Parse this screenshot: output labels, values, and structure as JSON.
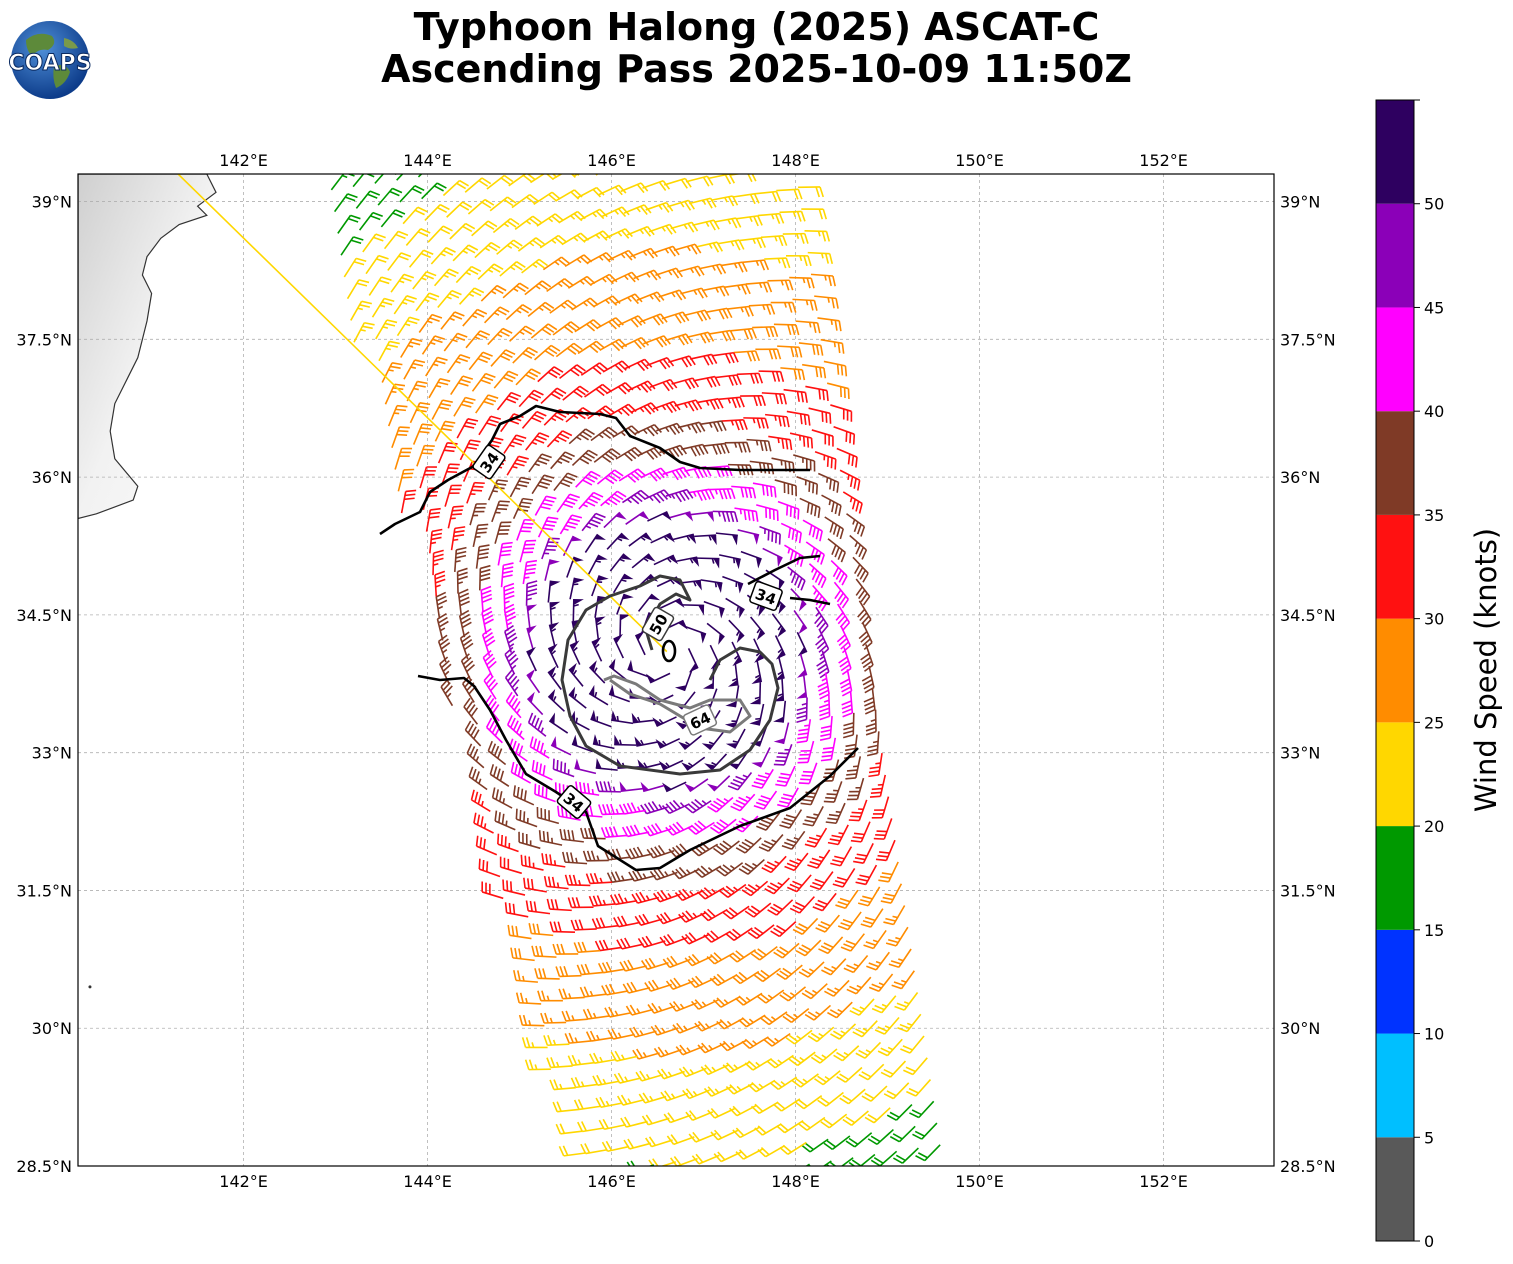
{
  "header": {
    "title_line1": "Typhoon Halong (2025) ASCAT-C",
    "title_line2": "Ascending Pass 2025-10-09 11:50Z",
    "logo_text": "COAPS"
  },
  "map": {
    "lon_range": [
      140.2,
      153.2
    ],
    "lat_range": [
      28.5,
      39.3
    ],
    "lon_ticks": [
      "142°E",
      "144°E",
      "146°E",
      "148°E",
      "150°E",
      "152°E"
    ],
    "lat_ticks": [
      "39°N",
      "37.5°N",
      "36°N",
      "34.5°N",
      "33°N",
      "31.5°N",
      "30°N",
      "28.5°N"
    ],
    "grid": true,
    "storm_center": {
      "lon": 146.6,
      "lat": 34.1
    },
    "contour_labels": [
      {
        "text": "34",
        "color": "#000000"
      },
      {
        "text": "34",
        "color": "#000000"
      },
      {
        "text": "34",
        "color": "#000000"
      },
      {
        "text": "50",
        "color": "#3a3a3a"
      },
      {
        "text": "64",
        "color": "#7a7a7a"
      }
    ]
  },
  "colorbar": {
    "label": "Wind Speed (knots)",
    "ticks": [
      "0",
      "5",
      "10",
      "15",
      "20",
      "25",
      "30",
      "35",
      "40",
      "45",
      "50"
    ],
    "colors": [
      "#595959",
      "#00bfff",
      "#0033ff",
      "#009900",
      "#ffd700",
      "#ff8c00",
      "#ff1111",
      "#7f3a26",
      "#ff00ff",
      "#8b00b8",
      "#2e0060"
    ]
  }
}
